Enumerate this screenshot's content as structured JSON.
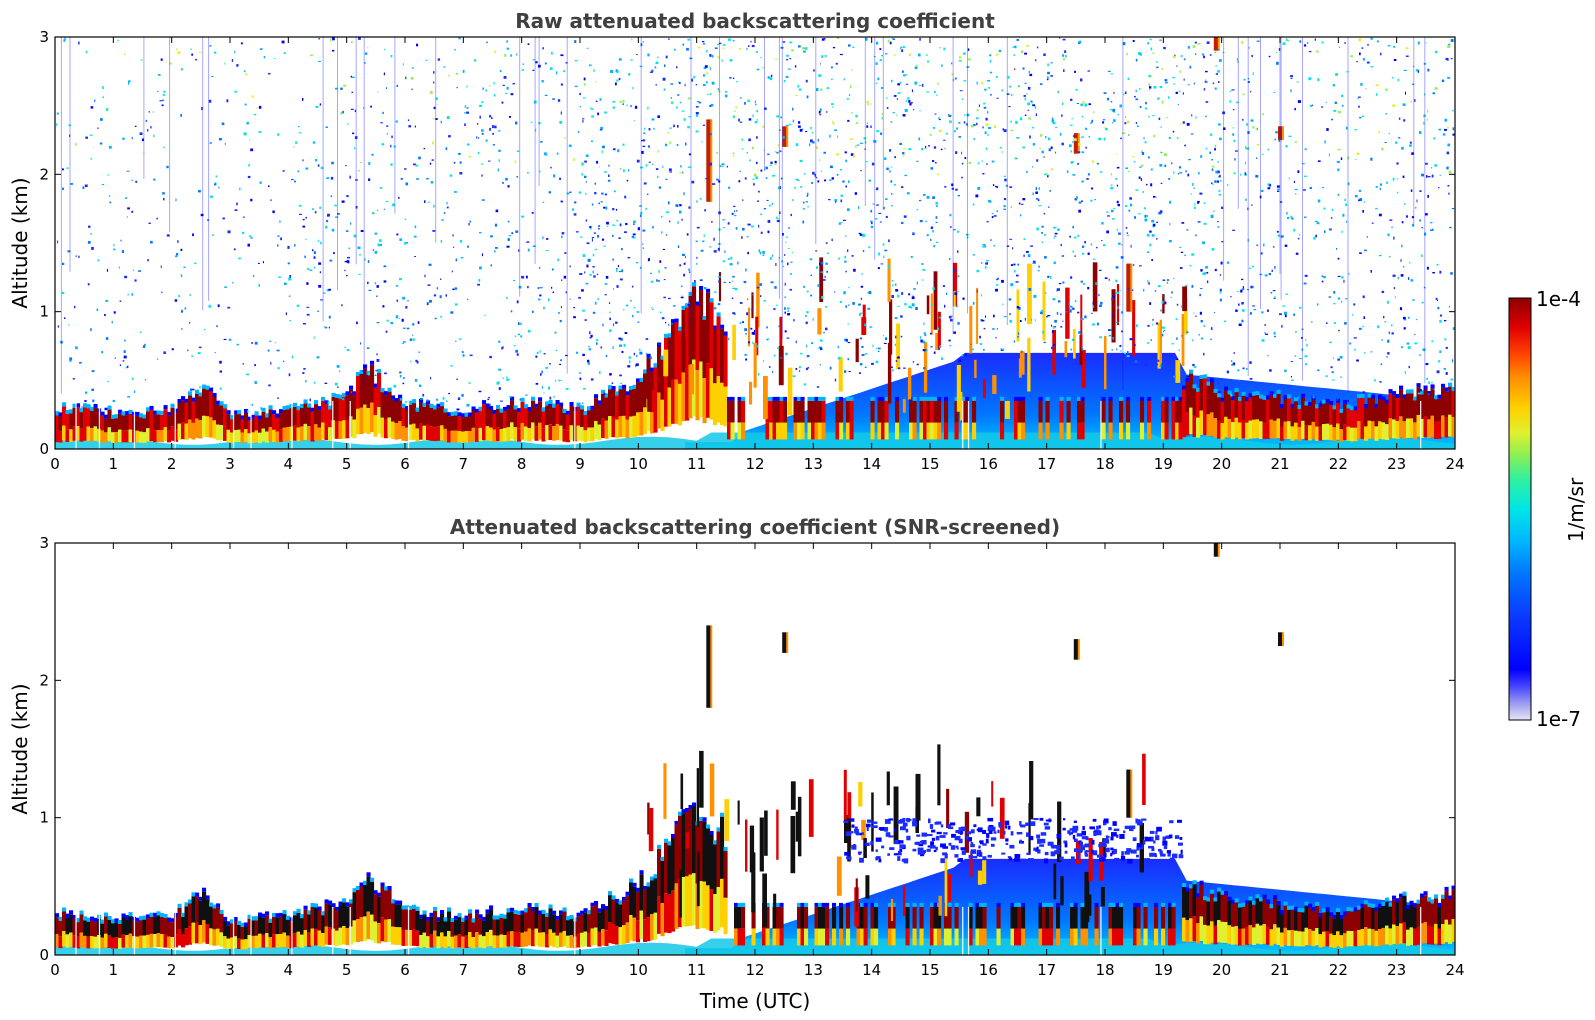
{
  "chart_data": [
    {
      "type": "heatmap",
      "title": "Raw attenuated backscattering coefficient",
      "xlabel": "",
      "ylabel": "Altitude (km)",
      "xlim": [
        0,
        24
      ],
      "ylim": [
        0,
        3
      ],
      "xticks": [
        "0",
        "1",
        "2",
        "3",
        "4",
        "5",
        "6",
        "7",
        "8",
        "9",
        "10",
        "11",
        "12",
        "13",
        "14",
        "15",
        "16",
        "17",
        "18",
        "19",
        "20",
        "21",
        "22",
        "23",
        "24"
      ],
      "yticks": [
        "0",
        "1",
        "2",
        "3"
      ],
      "boundary_layer_top_km": {
        "x": [
          0,
          1,
          2,
          2.5,
          3,
          4,
          5,
          5.3,
          6,
          7,
          8,
          9,
          10,
          11,
          12,
          13,
          14,
          15,
          16,
          17,
          18,
          19,
          20,
          21,
          22,
          23,
          24
        ],
        "y": [
          0.28,
          0.25,
          0.27,
          0.42,
          0.22,
          0.28,
          0.36,
          0.58,
          0.3,
          0.27,
          0.32,
          0.27,
          0.5,
          1.1,
          0.55,
          0.45,
          0.55,
          0.6,
          0.7,
          0.72,
          0.7,
          0.55,
          0.4,
          0.35,
          0.3,
          0.38,
          0.42
        ]
      },
      "high_layers": [
        {
          "time": 11.2,
          "alt": [
            1.8,
            2.4
          ]
        },
        {
          "time": 12.5,
          "alt": [
            2.2,
            2.35
          ]
        },
        {
          "time": 17.5,
          "alt": [
            2.15,
            2.3
          ]
        },
        {
          "time": 19.9,
          "alt": [
            2.9,
            3.0
          ]
        },
        {
          "time": 21.0,
          "alt": [
            2.25,
            2.35
          ]
        },
        {
          "time": 18.4,
          "alt": [
            1.0,
            1.35
          ]
        }
      ]
    },
    {
      "type": "heatmap",
      "title": "Attenuated backscattering coefficient (SNR-screened)",
      "xlabel": "Time (UTC)",
      "ylabel": "Altitude (km)",
      "xlim": [
        0,
        24
      ],
      "ylim": [
        0,
        3
      ],
      "xticks": [
        "0",
        "1",
        "2",
        "3",
        "4",
        "5",
        "6",
        "7",
        "8",
        "9",
        "10",
        "11",
        "12",
        "13",
        "14",
        "15",
        "16",
        "17",
        "18",
        "19",
        "20",
        "21",
        "22",
        "23",
        "24"
      ],
      "yticks": [
        "0",
        "1",
        "2",
        "3"
      ]
    }
  ],
  "colorbar": {
    "label": "1/m/sr",
    "max_label": "1e-4",
    "min_label": "1e-7",
    "scale": "log",
    "range": [
      1e-07,
      0.0001
    ],
    "colormap": [
      "#e6e6f5",
      "#9a9af0",
      "#4444ff",
      "#0000ff",
      "#0a3cff",
      "#0078ff",
      "#00b4ff",
      "#00e6e6",
      "#30f0a0",
      "#90f050",
      "#e0f030",
      "#ffd000",
      "#ff9000",
      "#ff4000",
      "#e00000",
      "#8c0000"
    ]
  }
}
